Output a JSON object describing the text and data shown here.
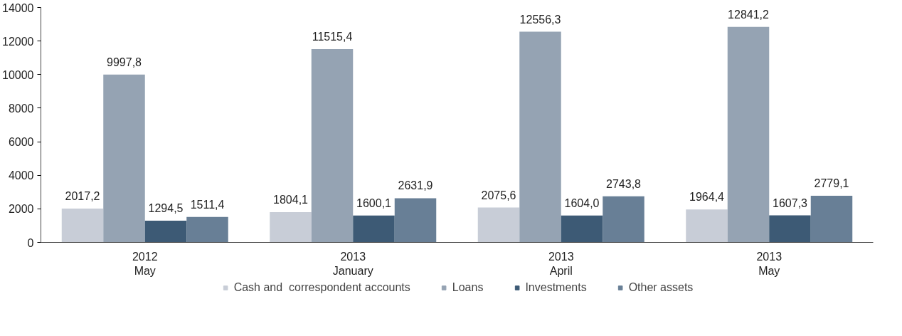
{
  "chart_data": {
    "type": "bar",
    "categories": [
      "2012\nMay",
      "2013\nJanuary",
      "2013\nApril",
      "2013\nMay"
    ],
    "series": [
      {
        "name": "Cash and  correspondent accounts",
        "color": "#c8cdd7",
        "values": [
          2017.2,
          1804.1,
          2075.6,
          1964.4
        ],
        "value_labels": [
          "2017,2",
          "1804,1",
          "2075,6",
          "1964,4"
        ]
      },
      {
        "name": "Loans",
        "color": "#95a3b3",
        "values": [
          9997.8,
          11515.4,
          12556.3,
          12841.2
        ],
        "value_labels": [
          "9997,8",
          "11515,4",
          "12556,3",
          "12841,2"
        ]
      },
      {
        "name": "Investments",
        "color": "#3d5a75",
        "values": [
          1294.5,
          1600.1,
          1604.0,
          1607.3
        ],
        "value_labels": [
          "1294,5",
          "1600,1",
          "1604,0",
          "1607,3"
        ]
      },
      {
        "name": "Other assets",
        "color": "#687f96",
        "values": [
          1511.4,
          2631.9,
          2743.8,
          2779.1
        ],
        "value_labels": [
          "1511,4",
          "2631,9",
          "2743,8",
          "2779,1"
        ]
      }
    ],
    "ylim": [
      0,
      14000
    ],
    "yticks": [
      0,
      2000,
      4000,
      6000,
      8000,
      10000,
      12000,
      14000
    ],
    "grid": false,
    "legend": "bottom"
  }
}
